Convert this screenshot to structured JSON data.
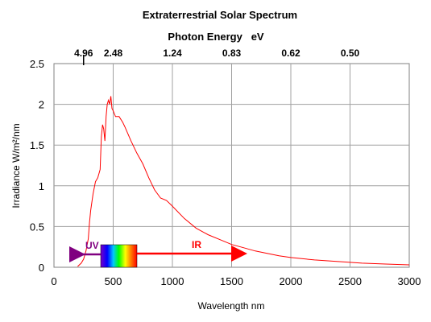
{
  "chart_data": {
    "type": "line",
    "title": "Extraterrestrial Solar Spectrum",
    "top_axis_label": "Photon Energy   eV",
    "top_axis_ticks": [
      {
        "wavelength_nm": 250,
        "label": "4.96"
      },
      {
        "wavelength_nm": 500,
        "label": "2.48"
      },
      {
        "wavelength_nm": 1000,
        "label": "1.24"
      },
      {
        "wavelength_nm": 1500,
        "label": "0.83"
      },
      {
        "wavelength_nm": 2000,
        "label": "0.62"
      },
      {
        "wavelength_nm": 2500,
        "label": "0.50"
      }
    ],
    "xlabel": "Wavelength nm",
    "ylabel": "Irradiance W/m²/nm",
    "xlim": [
      0,
      3000
    ],
    "ylim": [
      0,
      2.5
    ],
    "xticks": [
      0,
      500,
      1000,
      1500,
      2000,
      2500,
      3000
    ],
    "yticks": [
      0,
      0.5,
      1,
      1.5,
      2,
      2.5
    ],
    "xtick_labels": [
      "0",
      "500",
      "1000",
      "1500",
      "2000",
      "2500",
      "3000"
    ],
    "ytick_labels": [
      "0",
      "0.5",
      "1",
      "1.5",
      "2",
      "2.5"
    ],
    "grid": true,
    "colors": {
      "line": "#ff0000",
      "uv": "#800080",
      "ir": "#ff0000",
      "grid": "#a0a0a0",
      "plot_bg": "#ffffff"
    },
    "series": [
      {
        "x": [
          200,
          230,
          250,
          270,
          290,
          300,
          310,
          330,
          350,
          370,
          390,
          400,
          410,
          420,
          430,
          440,
          450,
          460,
          470,
          480,
          490,
          500,
          520,
          550,
          580,
          600,
          650,
          700,
          750,
          800,
          850,
          900,
          950,
          1000,
          1100,
          1200,
          1300,
          1400,
          1500,
          1600,
          1700,
          1800,
          1900,
          2000,
          2200,
          2400,
          2600,
          2800,
          3000
        ],
        "y": [
          0.01,
          0.05,
          0.1,
          0.2,
          0.35,
          0.55,
          0.7,
          0.9,
          1.05,
          1.1,
          1.2,
          1.6,
          1.75,
          1.7,
          1.55,
          1.85,
          2.0,
          2.05,
          2.0,
          2.1,
          1.95,
          1.92,
          1.85,
          1.85,
          1.78,
          1.72,
          1.55,
          1.4,
          1.27,
          1.1,
          0.95,
          0.85,
          0.82,
          0.75,
          0.6,
          0.48,
          0.4,
          0.34,
          0.28,
          0.24,
          0.2,
          0.17,
          0.14,
          0.12,
          0.09,
          0.07,
          0.05,
          0.04,
          0.03
        ]
      }
    ],
    "bands": {
      "uv_label": "UV",
      "ir_label": "IR"
    }
  }
}
